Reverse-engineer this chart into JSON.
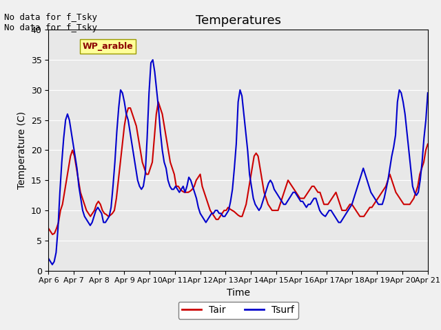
{
  "title": "Temperatures",
  "xlabel": "Time",
  "ylabel": "Temperature (C)",
  "text_top_left": "No data for f_Tsky\nNo data for f_Tsky",
  "legend_label": "WP_arable",
  "ylim": [
    0,
    40
  ],
  "line_Tair_color": "#cc0000",
  "line_Tsurf_color": "#0000cc",
  "line_width": 1.5,
  "background_color": "#e8e8e8",
  "x_tick_labels": [
    "Apr 6",
    "Apr 7",
    "Apr 8",
    "Apr 9",
    "Apr 10",
    "Apr 11",
    "Apr 12",
    "Apr 13",
    "Apr 14",
    "Apr 15",
    "Apr 16",
    "Apr 17",
    "Apr 18",
    "Apr 19",
    "Apr 20",
    "Apr 21"
  ],
  "x_tick_positions": [
    0,
    24,
    48,
    72,
    96,
    120,
    144,
    168,
    192,
    216,
    240,
    264,
    288,
    312,
    336,
    360
  ],
  "Tair_y": [
    7,
    6.5,
    6,
    6.2,
    7,
    8,
    10,
    11,
    13,
    15,
    17,
    19,
    20,
    19,
    17,
    15,
    13,
    12,
    11,
    10,
    9.5,
    9,
    9.5,
    10,
    11,
    11.5,
    11,
    10,
    9.5,
    9.3,
    9,
    9.2,
    9.5,
    10,
    12,
    15,
    18,
    21,
    24,
    26,
    27,
    27,
    26,
    25,
    24,
    22,
    20,
    18,
    17,
    16,
    16,
    17,
    18,
    22,
    26,
    28,
    27,
    26,
    24,
    22,
    20,
    18,
    17,
    16,
    14,
    14,
    13.5,
    13.2,
    13,
    13,
    13,
    13.2,
    13.5,
    14,
    15,
    15.5,
    16,
    14,
    13,
    12,
    11,
    10,
    9.5,
    9,
    8.5,
    8.5,
    9,
    9.5,
    10,
    10,
    10.5,
    10.2,
    10,
    9.8,
    9.5,
    9.2,
    9,
    9,
    10,
    11,
    13,
    15,
    17,
    19,
    19.5,
    19,
    17,
    15,
    13,
    12,
    11,
    10.5,
    10,
    10,
    10,
    10,
    11,
    12,
    13,
    14,
    15,
    14.5,
    14,
    13.5,
    13,
    12.5,
    12,
    12,
    12,
    12.5,
    13,
    13.5,
    14,
    14,
    13.5,
    13,
    13,
    12,
    11,
    11,
    11,
    11.5,
    12,
    12.5,
    13,
    12,
    11,
    10,
    10,
    10,
    10.5,
    11,
    11,
    10.5,
    10,
    9.5,
    9,
    9,
    9,
    9.5,
    10,
    10.5,
    10.5,
    11,
    11.5,
    12,
    12.5,
    13,
    13.5,
    14,
    15,
    16,
    15,
    14,
    13,
    12.5,
    12,
    11.5,
    11,
    11,
    11,
    11,
    11.5,
    12,
    13,
    14,
    16,
    17,
    18,
    20,
    21
  ],
  "Tsurf_y": [
    2,
    1.5,
    1,
    1.5,
    3,
    7,
    13,
    18,
    22,
    25,
    26,
    25,
    23,
    21,
    19,
    17,
    14,
    12,
    10,
    9,
    8.5,
    8,
    7.5,
    8,
    9,
    10,
    10.5,
    10,
    9.5,
    8,
    8,
    8.5,
    9,
    10.5,
    14,
    18,
    23,
    27,
    30,
    29.5,
    28,
    26,
    25,
    23,
    21,
    19,
    17,
    15,
    14,
    13.5,
    14,
    16,
    22,
    29.5,
    34.5,
    35,
    33,
    30,
    27,
    23,
    20,
    18,
    17,
    15,
    14,
    13.5,
    13.5,
    14,
    13.5,
    13,
    13.5,
    14,
    13,
    14,
    15.5,
    15,
    14,
    13,
    12,
    10.5,
    9.5,
    9,
    8.5,
    8,
    8.5,
    9,
    9.5,
    9.5,
    10,
    10,
    9.5,
    9.5,
    9,
    9,
    9.5,
    10,
    11.5,
    13.5,
    17,
    21,
    28,
    30,
    29,
    26,
    23,
    20,
    16,
    14,
    12,
    11,
    10.5,
    10,
    10.5,
    11.5,
    12.5,
    13.5,
    14.5,
    15,
    14.5,
    13.5,
    13,
    12.5,
    12,
    11.5,
    11,
    11,
    11.5,
    12,
    12.5,
    13,
    13,
    12.5,
    12,
    11.5,
    11.5,
    11,
    10.5,
    11,
    11,
    11.5,
    12,
    12,
    11,
    10,
    9.5,
    9.2,
    9,
    9.5,
    10,
    10,
    9.5,
    9,
    8.5,
    8,
    8,
    8.5,
    9,
    9.5,
    10,
    10.5,
    11,
    12,
    13,
    14,
    15,
    16,
    17,
    16,
    15,
    14,
    13,
    12.5,
    12,
    11.5,
    11,
    11,
    11,
    12,
    13.5,
    15,
    17,
    19,
    20.5,
    22.5,
    28,
    30,
    29.5,
    28,
    26,
    23,
    20,
    17,
    14,
    13,
    12.5,
    13,
    15,
    18,
    22,
    25,
    29.5
  ]
}
